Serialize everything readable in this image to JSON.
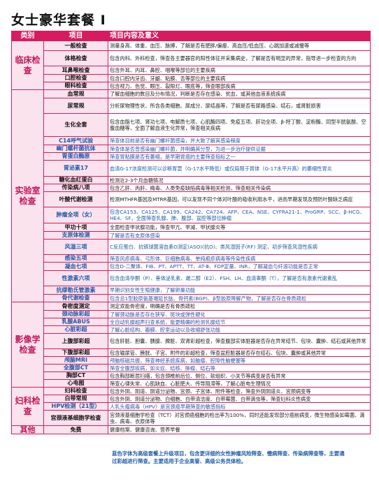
{
  "title": "女士豪华套餐 I",
  "headers": {
    "category": "类别",
    "item": "项目",
    "description": "项目内容及意义"
  },
  "categories": [
    {
      "name": "临床检查",
      "items": [
        {
          "name": "一般检查",
          "desc": "测量身高、体重、血压、脉搏，了解是否有肥胖/偏瘦、高血压/低血压、心跳加速或减慢等"
        },
        {
          "name": "体格检查",
          "desc": "包含内科、外科检查，筛查各主要器官的阳性体征并采集病史，了解是否有明显的异常，指导进一步检查的方向"
        },
        {
          "name": "耳鼻喉检查",
          "desc": "包含外耳、内耳、鼻腔、咽喉等部位的主要疾病"
        },
        {
          "name": "口腔检查",
          "desc": "包含口腔内牙齿、牙龈、粘膜、舌等部位的主要疾病"
        },
        {
          "name": "眼科检查",
          "desc": "包含视力、色觉、眼压、裂隙灯、眼底等，筛查眼部疾病"
        }
      ]
    },
    {
      "name": "实验室检查",
      "items": [
        {
          "name": "血常规",
          "desc": "了解血细胞的数目及分布情况，判断是否存在感染、贫血，或其他血液系统疾病"
        },
        {
          "name": "尿常规",
          "desc": "分析尿物理性状、所含各类细胞、尿成分、尿结晶等，了解是否有尿路感染、结石，或肾脏损害"
        },
        {
          "name": "生化全套",
          "desc": "包含血脂七项、肾功七项、电解质七项、心肌酶四项、免疫五项、肝功全项、β-羟丁酸、淀粉酶、同型半胱氨酸、空腹血糖等，全面了解血液生化异常，筛查相关疾病"
        },
        {
          "name": "C14呼气试验",
          "desc": "筛查体目前是否有幽门螺杆菌感染，并大致了解其感染程度"
        },
        {
          "name": "幽门螺杆菌抗体",
          "desc": "筛查体是否曾感染幽门螺杆菌，并明确其分型，为进一步治疗提供证据"
        },
        {
          "name": "胃蛋白酶原",
          "desc": "筛查胃粘膜是否有萎缩，是早期胃癌的主要筛查指标之一"
        },
        {
          "name": "胃泌素17",
          "desc": "血清G-17浓度检测可以诊断胃窦（G-17水平降低）或仅局限于胃体（G-17水平升高）的萎缩性胃炎"
        },
        {
          "name": "糖化血红蛋白",
          "desc": "检测近2-3个月血糖情况"
        },
        {
          "name": "传染病八项",
          "desc": "包含乙肝、丙肝、梅毒、人类免疫缺陷病毒等相关检测，筛查相关传染病"
        },
        {
          "name": "叶酸代谢检测",
          "desc": "检测MTHFR基因及MTRR基因，可以发现不同个体对叶酸的吸收利用水平，进而早期发现及预防叶酸缺乏病症"
        },
        {
          "name": "肿瘤全项（女）",
          "desc": "包含CA153、CA125、CA199、CA242、CA724、AFP、CEA、NSE、CYFRA21-1、ProGRP、SCC、β-HCG、HE4、SF，全面筛查乳腺、肺、腹部、盆腔等部位肿瘤"
        },
        {
          "name": "甲功十项",
          "desc": "全面检查甲状腺功能，筛查甲亢、甲减、甲状腺炎等"
        },
        {
          "name": "支原体检测",
          "desc": "了解是否有支原体感染"
        },
        {
          "name": "风湿三项",
          "desc": "C反应蛋白、抗链球菌溶血素O测定(ASO)(抗O)、类风湿因子(RF) 测定，初步筛查风湿性疾病"
        },
        {
          "name": "感染五项",
          "desc": "筛查风疹病毒、弓形体、巨细胞病毒、单纯疱疹病毒等传染性疾病"
        },
        {
          "name": "凝血七项",
          "desc": "包含D-二聚体、FIB、PT、APTT、TT、AT-Ⅲ、FDP定量、INR，了解凝血与纤溶功能是否正常"
        },
        {
          "name": "性激素六项",
          "desc": "包含血清孕酮（P）、垂体泌乳素、雌二醇（E2）、FSH、LH、血清睾酮（T），了解是否有激素代谢紊乱"
        },
        {
          "name": "抗缪勒氏管激素",
          "desc": "早期识别女性生殖健康，了解卵巢功能"
        },
        {
          "name": "骨代谢检查",
          "desc": "包含总1型胶原氨基端延长肽、骨钙素(BGP)、β型胶原降解产物，了解是否存在骨质疏松"
        }
      ]
    },
    {
      "name": "影像学检查",
      "items": [
        {
          "name": "骨密度测定",
          "desc": "测定双能骨密度，明确是否有骨质疏松"
        },
        {
          "name": "颈动脉彩超",
          "desc": "了解颈动脉是否存在狭窄、斑块或弹性硬化"
        },
        {
          "name": "乳腺ABUS",
          "desc": "全自动乳腺超声扫查系统，能更精确的检测乳腺结节"
        },
        {
          "name": "心脏彩超",
          "desc": "了解心脏结构、瓣膜、腔室运动以及收缩舒张功能"
        },
        {
          "name": "上腹部彩超",
          "desc": "包含肝脏、胆囊、胰腺、脾脏、双肾彩超检查，筛查腹部实体脏器是否存在异常结节、包块、囊肿、结石或其他异常"
        },
        {
          "name": "下腹部彩超",
          "desc": "包含输尿管、膀胱、子宫、附件的彩超检查，筛查盆腔脏器是否存在结石、包块、囊肿或其他异常"
        },
        {
          "name": "颅脑MRI",
          "desc": "颅脑核磁共振，筛查神经系统疾病，如脑瘤、腔隙性脑梗塞等"
        },
        {
          "name": "全腹部CT",
          "desc": "筛查全腹部疾病，如炎症、结核、肿瘤、结石等"
        },
        {
          "name": "胸部CT",
          "desc": "包含胸部断层扫描，包含颈椎前后位、侧位、软组织、小关节等病变是否有异常"
        },
        {
          "name": "心电图",
          "desc": "筛查心律失常、心肌缺血、心脏肥大、传导阻滞等，了解心脏电生理情况"
        }
      ]
    },
    {
      "name": "妇科检查",
      "items": [
        {
          "name": "妇科检查",
          "desc": "包含外阴、阴道、阴道分泌物、宫颈、子宫体、附件等检查，筛查外阴阴道炎、宫颈病变等"
        },
        {
          "name": "白带常规",
          "desc": "包含外阴、阴道分泌物、白细胞、白带清洁度、白带霉菌、白带滴虫等，筛查妇科炎性病变"
        },
        {
          "name": "HPV检测（21型）",
          "desc": "人乳头瘤病毒（HPV）是宫颈癌早期筛查的敏感指标"
        },
        {
          "name": "宫颈液基细胞学检查",
          "desc": "宫颈液基细胞学检查（TCT）对宫颈癌细胞的检出率为100%，同时还能发现部分癌前病变，微生物感染如霉菌、滴虫、病毒、衣原体等"
        }
      ]
    },
    {
      "name": "其他",
      "items": [
        {
          "name": "免费",
          "desc": "健康档案、健康咨询、营养早餐"
        }
      ]
    }
  ],
  "note": "蓝色字体为高级套餐上升级项目，包含更详细的女性肿瘤风险筛查、慢病筛查、传染病筛查等，主要通过彩超进行筛查。主要适用于企业高管、高级公务员体检。"
}
